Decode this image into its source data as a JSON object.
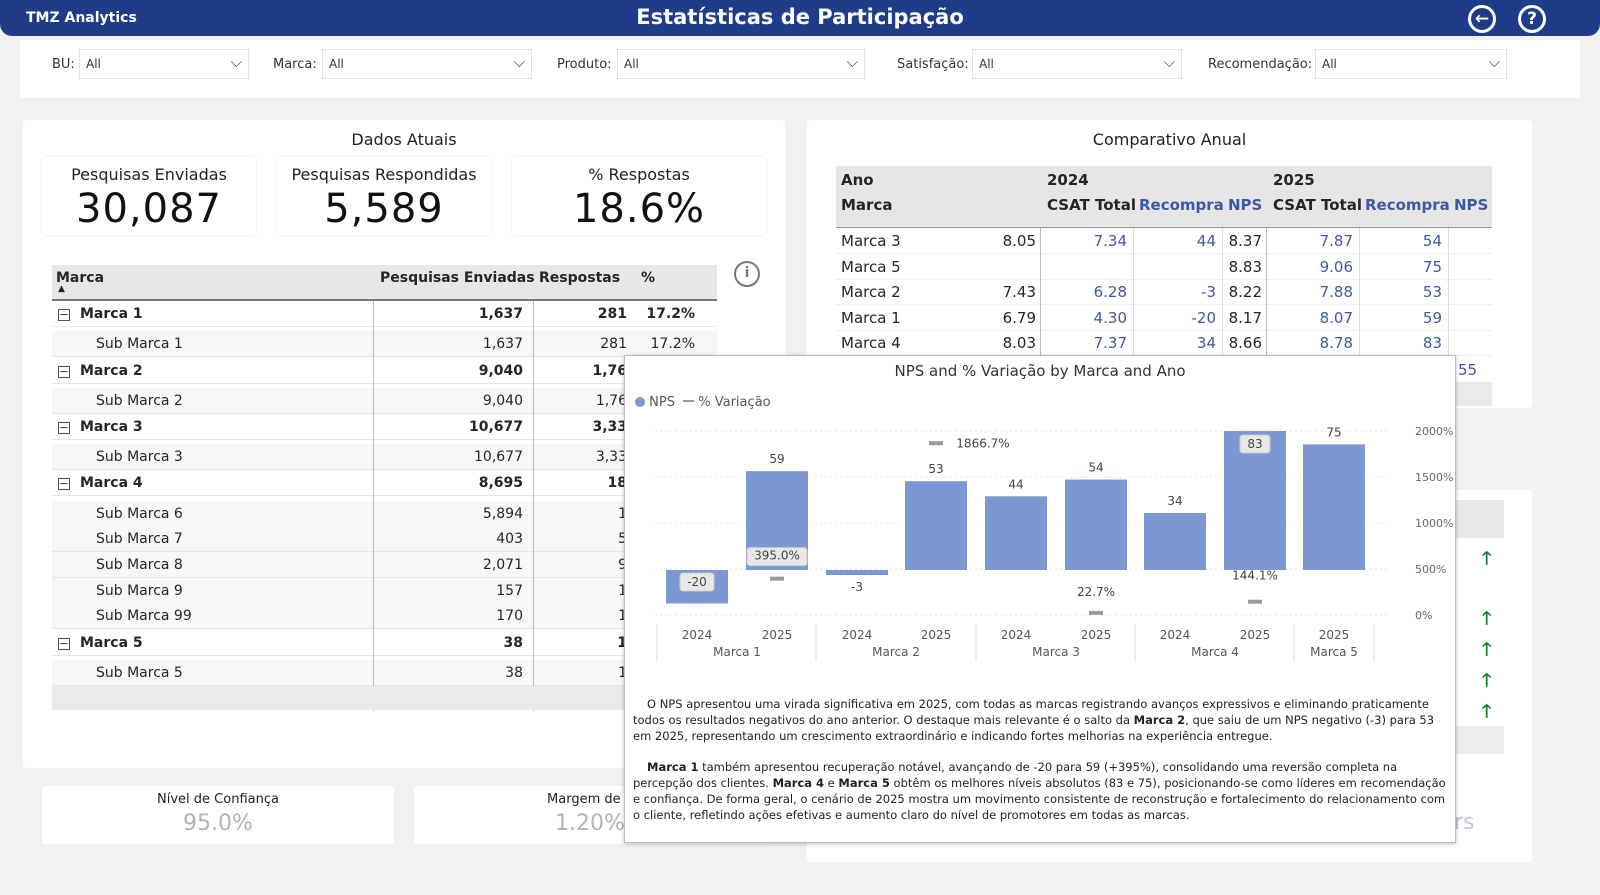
{
  "header": {
    "brand": "TMZ Analytics",
    "title": "Estatísticas de Participação"
  },
  "filters": [
    {
      "label": "BU:",
      "value": "All"
    },
    {
      "label": "Marca:",
      "value": "All"
    },
    {
      "label": "Produto:",
      "value": "All"
    },
    {
      "label": "Satisfação:",
      "value": "All"
    },
    {
      "label": "Recomendação:",
      "value": "All"
    }
  ],
  "current": {
    "title": "Dados Atuais",
    "cards": [
      {
        "label": "Pesquisas Enviadas",
        "value": "30,087"
      },
      {
        "label": "Pesquisas Respondidas",
        "value": "5,589"
      },
      {
        "label": "% Respostas",
        "value": "18.6%"
      }
    ],
    "table": {
      "headers": [
        "Marca",
        "Pesquisas Enviadas",
        "Respostas",
        "%"
      ],
      "rows": [
        {
          "kind": "group",
          "name": "Marca 1",
          "sent": "1,637",
          "resp": "281",
          "pct": "17.2%"
        },
        {
          "kind": "sub",
          "name": "Sub Marca 1",
          "sent": "1,637",
          "resp": "281",
          "pct": "17.2%"
        },
        {
          "kind": "group",
          "name": "Marca 2",
          "sent": "9,040",
          "resp": "1,76",
          "pct": ""
        },
        {
          "kind": "sub",
          "name": "Sub Marca 2",
          "sent": "9,040",
          "resp": "1,76",
          "pct": ""
        },
        {
          "kind": "group",
          "name": "Marca 3",
          "sent": "10,677",
          "resp": "3,33",
          "pct": ""
        },
        {
          "kind": "sub",
          "name": "Sub Marca 3",
          "sent": "10,677",
          "resp": "3,33",
          "pct": ""
        },
        {
          "kind": "group",
          "name": "Marca 4",
          "sent": "8,695",
          "resp": "18",
          "pct": ""
        },
        {
          "kind": "sub",
          "name": "Sub Marca 6",
          "sent": "5,894",
          "resp": "1",
          "pct": ""
        },
        {
          "kind": "sub",
          "name": "Sub Marca 7",
          "sent": "403",
          "resp": "5",
          "pct": ""
        },
        {
          "kind": "sub",
          "name": "Sub Marca 8",
          "sent": "2,071",
          "resp": "9",
          "pct": ""
        },
        {
          "kind": "sub",
          "name": "Sub Marca 9",
          "sent": "157",
          "resp": "1",
          "pct": ""
        },
        {
          "kind": "sub",
          "name": "Sub Marca 99",
          "sent": "170",
          "resp": "1",
          "pct": ""
        },
        {
          "kind": "group",
          "name": "Marca 5",
          "sent": "38",
          "resp": "1",
          "pct": ""
        },
        {
          "kind": "sub",
          "name": "Sub Marca 5",
          "sent": "38",
          "resp": "1",
          "pct": ""
        }
      ]
    },
    "bottom_cards": [
      {
        "label": "Nível de Confiança",
        "value": "95.0%"
      },
      {
        "label": "Margem de E",
        "value": "1.20%"
      }
    ]
  },
  "comparison": {
    "title": "Comparativo Anual",
    "header": {
      "ano": "Ano",
      "marca": "Marca",
      "y2024": "2024",
      "y2025": "2025",
      "csat": "CSAT Total",
      "recompra": "Recompra",
      "nps": "NPS"
    },
    "rows": [
      {
        "marca": "Marca 3",
        "c24": "8.05",
        "r24": "7.34",
        "n24": "44",
        "c25": "8.37",
        "r25": "7.87",
        "n25": "54"
      },
      {
        "marca": "Marca 5",
        "c24": "",
        "r24": "",
        "n24": "",
        "c25": "8.83",
        "r25": "9.06",
        "n25": "75"
      },
      {
        "marca": "Marca 2",
        "c24": "7.43",
        "r24": "6.28",
        "n24": "-3",
        "c25": "8.22",
        "r25": "7.88",
        "n25": "53"
      },
      {
        "marca": "Marca 1",
        "c24": "6.79",
        "r24": "4.30",
        "n24": "-20",
        "c25": "8.17",
        "r25": "8.07",
        "n25": "59"
      },
      {
        "marca": "Marca 4",
        "c24": "8.03",
        "r24": "7.37",
        "n24": "34",
        "c25": "8.66",
        "r25": "8.78",
        "n25": "83"
      }
    ],
    "extra_nps": "55",
    "partial_text": "rs"
  },
  "tooltip": {
    "title": "NPS and % Variação by Marca and Ano",
    "legend_nps": "NPS",
    "legend_var": "% Variação",
    "paragraph1_a": "O NPS apresentou uma virada significativa em 2025, com todas as marcas registrando avanços expressivos e eliminando praticamente todos os resultados negativos do ano anterior. O destaque mais relevante é o salto da ",
    "paragraph1_b": "Marca 2",
    "paragraph1_c": ", que saiu de um NPS negativo (-3) para 53 em 2025, representando um crescimento extraordinário e indicando fortes melhorias na experiência entregue.",
    "paragraph2_a": "Marca 1",
    "paragraph2_b": " também apresentou recuperação notável, avançando de -20 para 59 (+395%), consolidando uma reversão completa na percepção dos clientes. ",
    "paragraph2_c": "Marca 4",
    "paragraph2_d": " e ",
    "paragraph2_e": "Marca 5",
    "paragraph2_f": " obtêm os melhores níveis absolutos (83 e 75), posicionando-se como líderes em recomendação e confiança. De forma geral, o cenário de 2025 mostra um movimento consistente de reconstrução e fortalecimento do relacionamento com o cliente, refletindo ações efetivas e aumento claro do nível de promotores em todas as marcas."
  },
  "chart_data": {
    "type": "bar",
    "title": "NPS and % Variação by Marca and Ano",
    "bar_color": "#7d97d2",
    "line_color": "#9a9a9a",
    "y_left": {
      "min": -25,
      "max": 90
    },
    "y_right": {
      "min": 0,
      "max": 2000,
      "ticks": [
        "0%",
        "500%",
        "1000%",
        "1500%",
        "2000%"
      ],
      "tick_values": [
        0,
        500,
        1000,
        1500,
        2000
      ]
    },
    "groups": [
      "Marca 1",
      "Marca 2",
      "Marca 3",
      "Marca 4",
      "Marca 5"
    ],
    "points": [
      {
        "marca": "Marca 1",
        "ano": "2024",
        "nps": -20,
        "nps_label": "-20",
        "var": null,
        "var_label": ""
      },
      {
        "marca": "Marca 1",
        "ano": "2025",
        "nps": 59,
        "nps_label": "59",
        "var": 395.0,
        "var_label": "395.0%"
      },
      {
        "marca": "Marca 2",
        "ano": "2024",
        "nps": -3,
        "nps_label": "-3",
        "var": null,
        "var_label": ""
      },
      {
        "marca": "Marca 2",
        "ano": "2025",
        "nps": 53,
        "nps_label": "53",
        "var": 1866.7,
        "var_label": "1866.7%"
      },
      {
        "marca": "Marca 3",
        "ano": "2024",
        "nps": 44,
        "nps_label": "44",
        "var": null,
        "var_label": ""
      },
      {
        "marca": "Marca 3",
        "ano": "2025",
        "nps": 54,
        "nps_label": "54",
        "var": 22.7,
        "var_label": "22.7%"
      },
      {
        "marca": "Marca 4",
        "ano": "2024",
        "nps": 34,
        "nps_label": "34",
        "var": null,
        "var_label": ""
      },
      {
        "marca": "Marca 4",
        "ano": "2025",
        "nps": 83,
        "nps_label": "83",
        "var": 144.1,
        "var_label": "144.1%"
      },
      {
        "marca": "Marca 5",
        "ano": "2025",
        "nps": 75,
        "nps_label": "75",
        "var": null,
        "var_label": ""
      }
    ]
  }
}
